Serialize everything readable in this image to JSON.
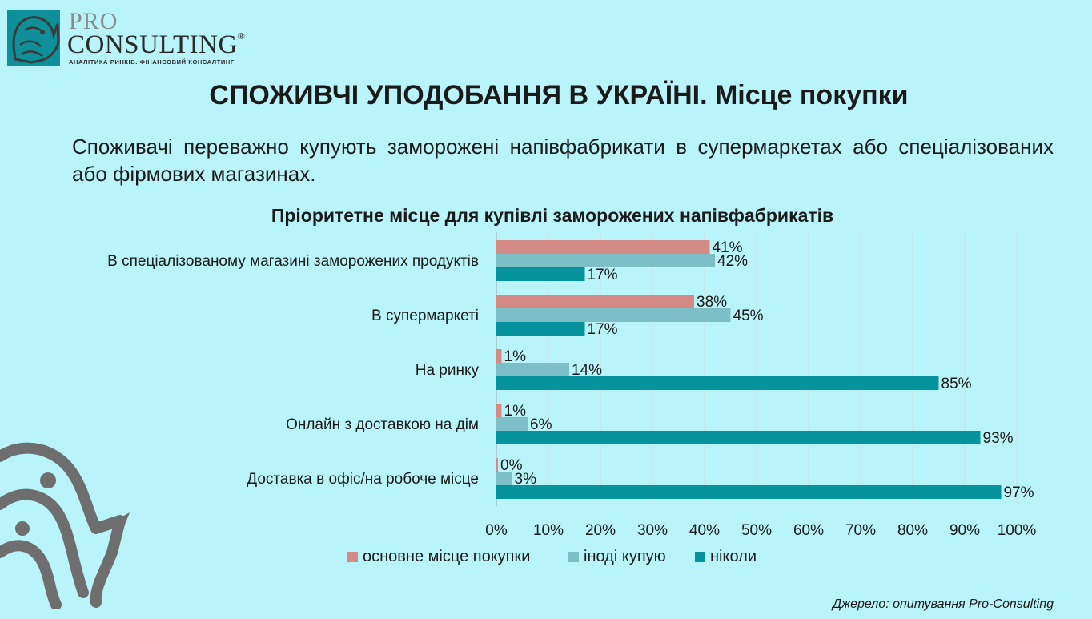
{
  "brand": {
    "pro": "PRO",
    "consulting": "CONSULTING",
    "registered": "®",
    "tagline": "АНАЛІТИКА РИНКІВ. ФІНАНСОВИЙ КОНСАЛТИНГ",
    "accent": "#0f8f99"
  },
  "page_title": "СПОЖИВЧІ УПОДОБАННЯ В УКРАЇНІ. Місце покупки",
  "intro": "Споживачі переважно купують заморожені напівфабрикати в супермаркетах або спеціалізованих або фірмових магазинах.",
  "source_note": "Джерело: опитування Pro-Consulting",
  "chart_data": {
    "type": "bar",
    "orientation": "horizontal",
    "title": "Пріоритетне місце для купівлі заморожених напівфабрикатів",
    "categories": [
      "В спеціалізованому магазині заморожених продуктів",
      "В супермаркеті",
      "На ринку",
      "Онлайн з доставкою на дім",
      "Доставка в офіс/на робоче місце"
    ],
    "series": [
      {
        "name": "основне місце покупки",
        "color": "#d48b87",
        "values": [
          41,
          38,
          1,
          1,
          0
        ]
      },
      {
        "name": "іноді купую",
        "color": "#7cbfc6",
        "values": [
          42,
          45,
          14,
          6,
          3
        ]
      },
      {
        "name": "ніколи",
        "color": "#05939e",
        "values": [
          17,
          17,
          85,
          93,
          97
        ]
      }
    ],
    "xlim": [
      0,
      100
    ],
    "xticks": [
      "0%",
      "10%",
      "20%",
      "30%",
      "40%",
      "50%",
      "60%",
      "70%",
      "80%",
      "90%",
      "100%"
    ],
    "value_suffix": "%",
    "grid": true,
    "legend": "bottom"
  }
}
